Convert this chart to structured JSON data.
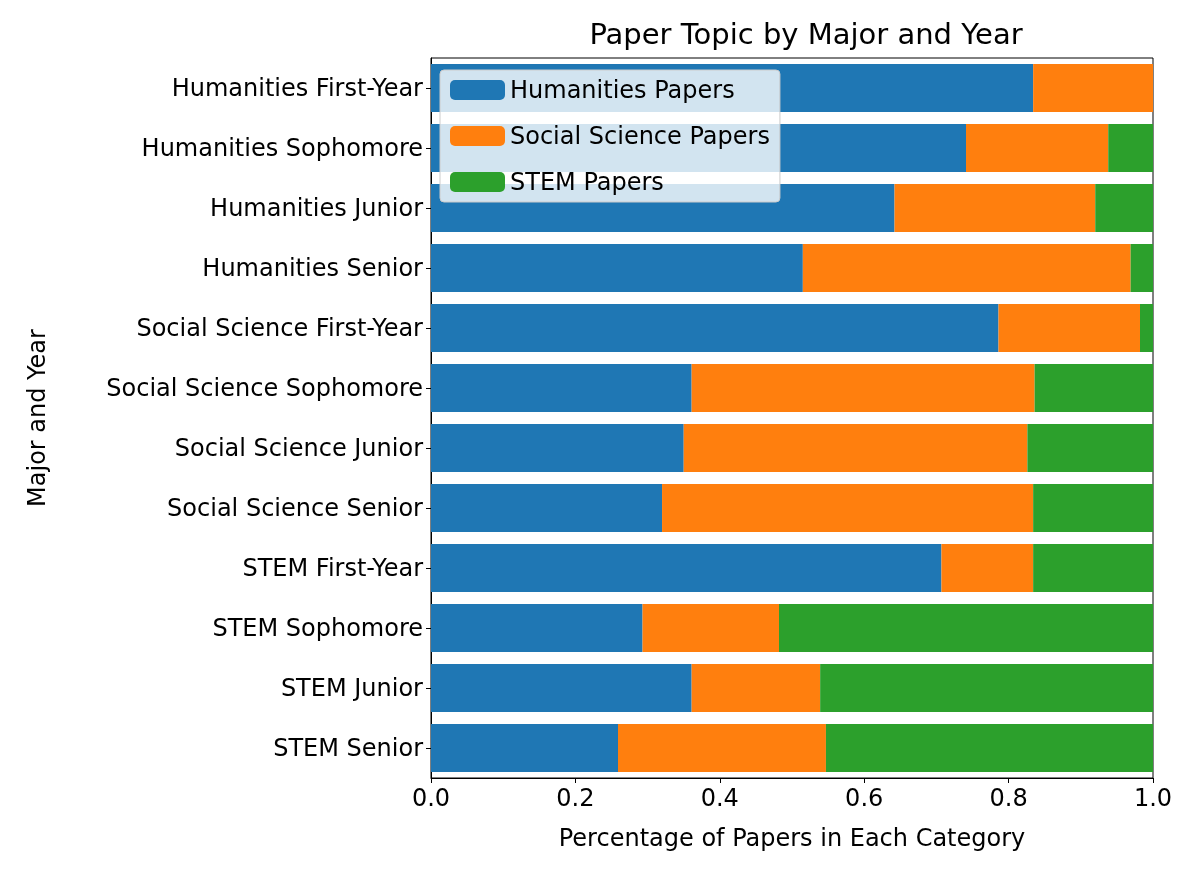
{
  "chart_data": {
    "type": "bar",
    "orientation": "horizontal",
    "stacked": true,
    "title": "Paper Topic by Major and Year",
    "xlabel": "Percentage of Papers in Each Category",
    "ylabel": "Major and Year",
    "categories": [
      "Humanities First-Year",
      "Humanities Sophomore",
      "Humanities Junior",
      "Humanities Senior",
      "Social Science First-Year",
      "Social Science Sophomore",
      "Social Science Junior",
      "Social Science Senior",
      "STEM First-Year",
      "STEM Sophomore",
      "STEM Junior",
      "STEM Senior"
    ],
    "series": [
      {
        "name": "Humanities Papers",
        "color": "#1f77b4",
        "values": [
          0.834,
          0.741,
          0.642,
          0.515,
          0.786,
          0.361,
          0.35,
          0.32,
          0.707,
          0.293,
          0.361,
          0.259
        ]
      },
      {
        "name": "Social Science Papers",
        "color": "#ff7f0e",
        "values": [
          0.166,
          0.197,
          0.278,
          0.454,
          0.196,
          0.475,
          0.476,
          0.514,
          0.127,
          0.189,
          0.178,
          0.288
        ]
      },
      {
        "name": "STEM Papers",
        "color": "#2ca02c",
        "values": [
          0,
          0.062,
          0.08,
          0.031,
          0.018,
          0.164,
          0.174,
          0.166,
          0.166,
          0.518,
          0.461,
          0.453
        ]
      }
    ],
    "xlim": [
      0,
      1
    ],
    "xticks": [
      {
        "value": 0,
        "label": "0.0"
      },
      0.2,
      0.4,
      0.6,
      0.8,
      {
        "value": 1,
        "label": "1.0"
      }
    ],
    "legend": "top left",
    "grid": false
  }
}
